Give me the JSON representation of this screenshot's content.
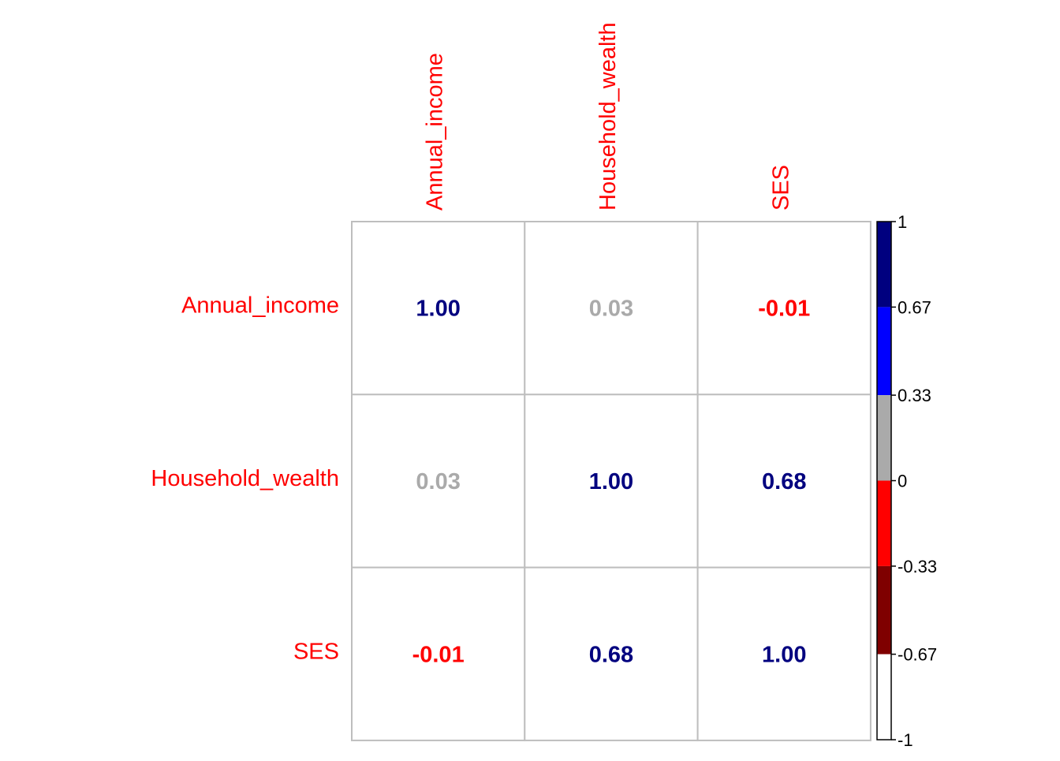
{
  "chart_data": {
    "type": "heatmap",
    "variables": [
      "Annual_income",
      "Household_wealth",
      "SES"
    ],
    "matrix": [
      [
        1.0,
        0.03,
        -0.01
      ],
      [
        0.03,
        1.0,
        0.68
      ],
      [
        -0.01,
        0.68,
        1.0
      ]
    ],
    "value_labels": [
      [
        "1.00",
        "0.03",
        "-0.01"
      ],
      [
        "0.03",
        "1.00",
        "0.68"
      ],
      [
        "-0.01",
        "0.68",
        "1.00"
      ]
    ],
    "label_color": "#ff0000",
    "grid_color": "#bebebe",
    "legend": {
      "position": "right",
      "range": [
        -1,
        1
      ],
      "ticks": [
        "1",
        "0.67",
        "0.33",
        "0",
        "-0.33",
        "-0.67",
        "-1"
      ],
      "bins": [
        {
          "from": 0.67,
          "to": 1,
          "color": "#00007f"
        },
        {
          "from": 0.33,
          "to": 0.67,
          "color": "#0000ff"
        },
        {
          "from": 0,
          "to": 0.33,
          "color": "#aaaaaa"
        },
        {
          "from": -0.33,
          "to": 0,
          "color": "#ff0000"
        },
        {
          "from": -0.67,
          "to": -0.33,
          "color": "#7f0000"
        },
        {
          "from": -1,
          "to": -0.67,
          "color": "#ffffff"
        }
      ]
    }
  }
}
